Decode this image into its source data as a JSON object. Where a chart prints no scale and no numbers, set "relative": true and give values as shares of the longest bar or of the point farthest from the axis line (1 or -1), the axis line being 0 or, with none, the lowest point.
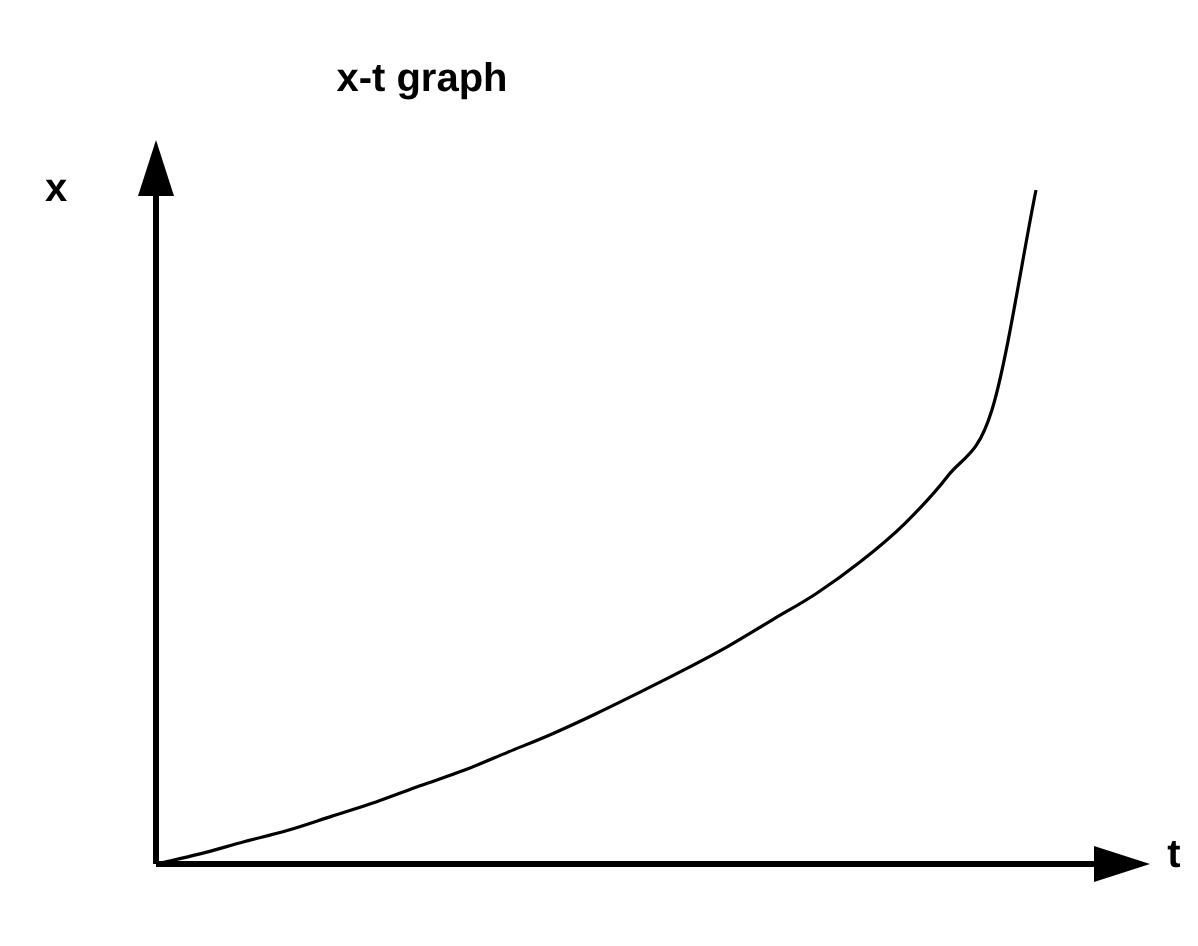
{
  "chart_data": {
    "type": "line",
    "title": "x-t graph",
    "xlabel": "t",
    "ylabel": "x",
    "relative": true,
    "marker": "none",
    "line_style": "solid",
    "legend": false,
    "categories": [
      null,
      null,
      null,
      null,
      null,
      null,
      null,
      null,
      null,
      null,
      null,
      null,
      null,
      null,
      null,
      null,
      null,
      null,
      null,
      null,
      null,
      null,
      null
    ],
    "series": [
      {
        "color": "#000000",
        "values": [
          0,
          0.015,
          0.033,
          0.05,
          0.071,
          0.092,
          0.116,
          0.139,
          0.166,
          0.193,
          0.223,
          0.255,
          0.288,
          0.323,
          0.362,
          0.401,
          0.448,
          0.504,
          0.576,
          0.674,
          1,
          null,
          null
        ]
      }
    ]
  }
}
